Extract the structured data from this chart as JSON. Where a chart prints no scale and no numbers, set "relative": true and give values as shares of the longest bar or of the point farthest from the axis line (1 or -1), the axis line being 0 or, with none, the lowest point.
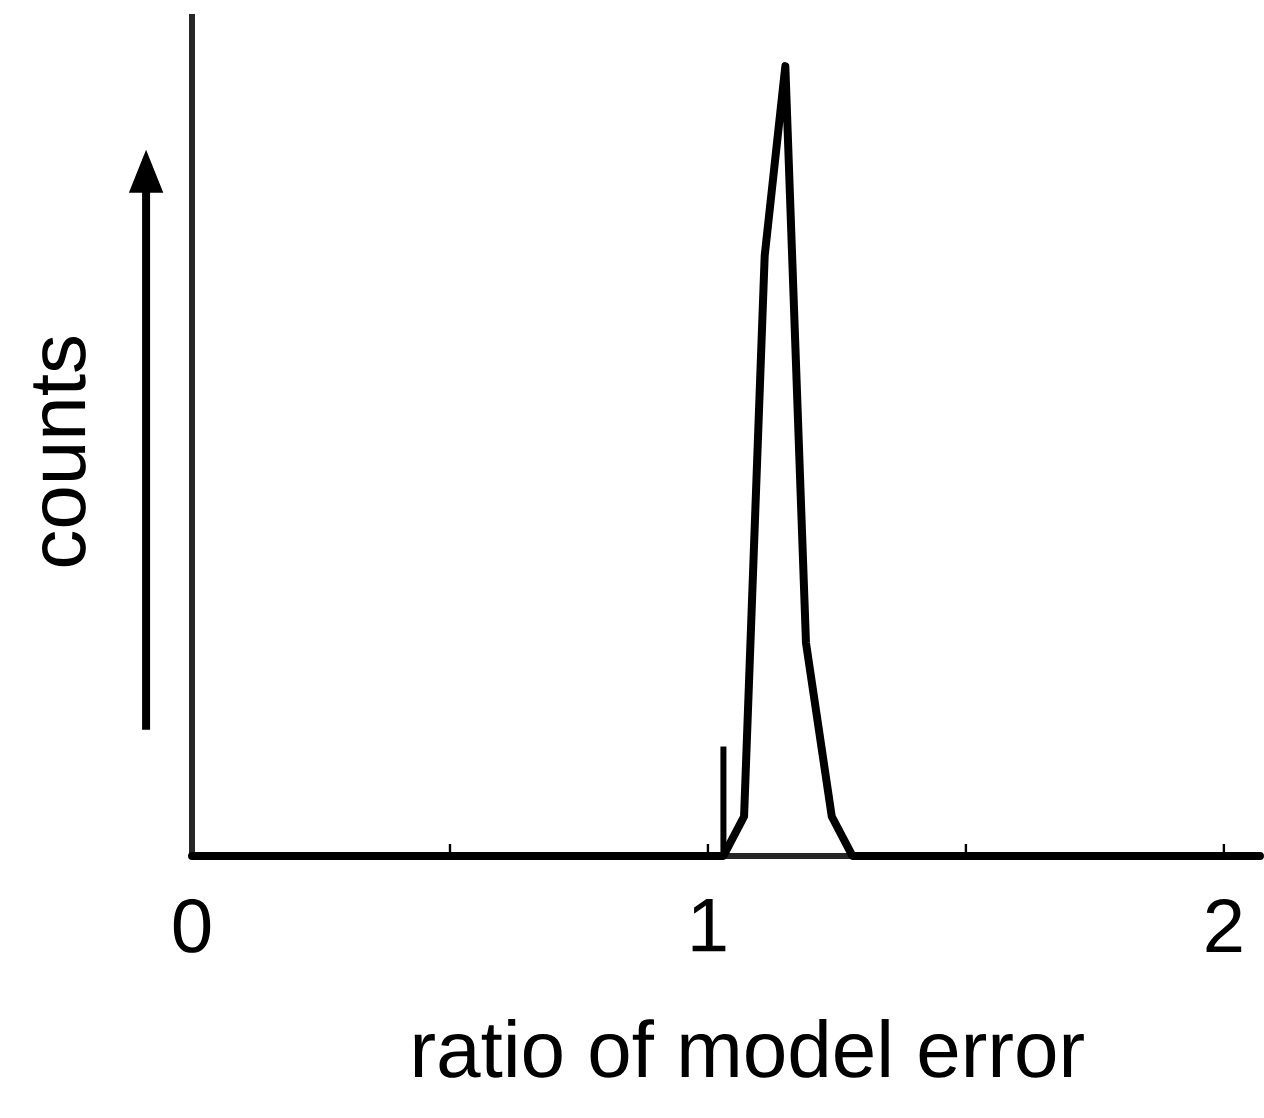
{
  "chart_data": {
    "type": "line",
    "xlabel": "ratio of model error",
    "ylabel": "counts",
    "relative": true,
    "x": [
      0,
      1.03,
      1.07,
      1.11,
      1.15,
      1.19,
      1.24,
      1.28,
      2.07
    ],
    "values": [
      0,
      0,
      0.05,
      0.76,
      1,
      0.27,
      0.05,
      0,
      0
    ],
    "color": "#000000",
    "xlim": [
      0,
      2.07
    ],
    "xticks": [
      0,
      {
        "value": 0.5,
        "label": null
      },
      1,
      {
        "value": 1.5,
        "label": null
      },
      2
    ],
    "ref_lines": [
      {
        "axis": "x",
        "value": 1.03,
        "color": "#000000"
      }
    ],
    "tick_labels": "x",
    "marker": "none",
    "line_style": "solid"
  }
}
